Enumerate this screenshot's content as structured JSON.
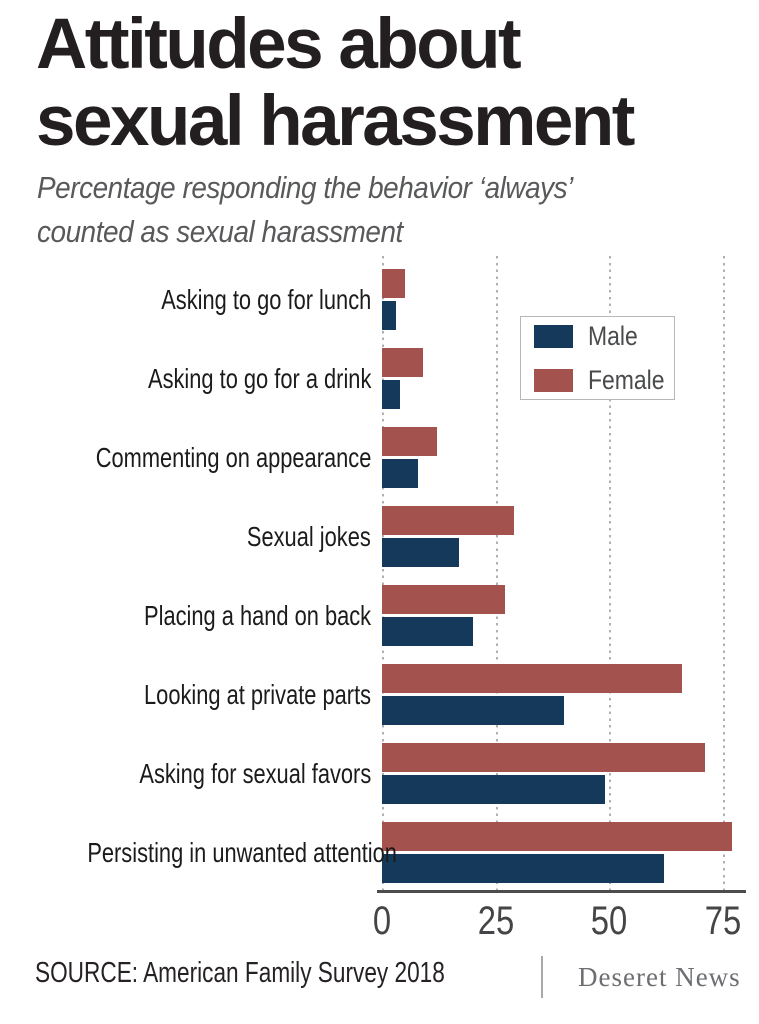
{
  "header": {
    "title_line1": "Attitudes about",
    "title_line2": "sexual harassment",
    "subtitle_line1": "Percentage responding the behavior ‘always’",
    "subtitle_line2": "counted as sexual harassment"
  },
  "chart_data": {
    "type": "bar",
    "orientation": "horizontal",
    "title": "Attitudes about sexual harassment",
    "subtitle": "Percentage responding the behavior ‘always’ counted as sexual harassment",
    "categories": [
      "Asking to go for lunch",
      "Asking to go for a drink",
      "Commenting on appearance",
      "Sexual jokes",
      "Placing a hand on back",
      "Looking at private parts",
      "Asking for sexual favors",
      "Persisting in unwanted attention"
    ],
    "series": [
      {
        "name": "Male",
        "color": "#15395A",
        "values": [
          3,
          4,
          8,
          17,
          20,
          40,
          49,
          62
        ]
      },
      {
        "name": "Female",
        "color": "#A4524E",
        "values": [
          5,
          9,
          12,
          29,
          27,
          66,
          71,
          77
        ]
      }
    ],
    "bar_order_top_to_bottom": [
      "Female",
      "Male"
    ],
    "xlim": [
      0,
      75
    ],
    "xticks": [
      0,
      25,
      50,
      75
    ],
    "grid": "dotted-vertical",
    "legend_position": "top-right"
  },
  "footer": {
    "source": "SOURCE: American Family Survey 2018",
    "brand": "Deseret News"
  }
}
